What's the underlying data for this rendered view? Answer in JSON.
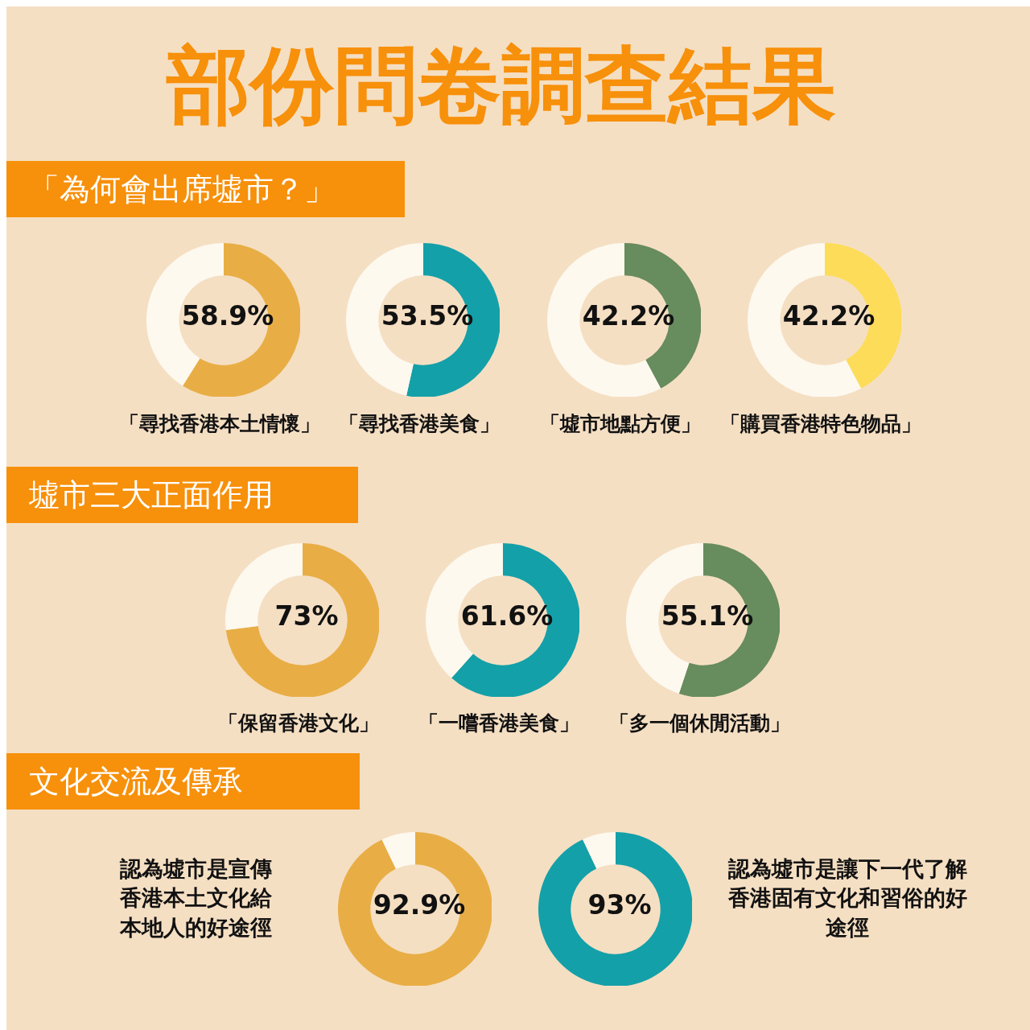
{
  "chart_data": [
    {
      "type": "other",
      "title": "部份問卷調查結果"
    },
    {
      "type": "donut",
      "subtitle": "「為何會出席墟市？」",
      "title": "「尋找香港本土情懷」",
      "categories": [
        null,
        null
      ],
      "values": [
        58.9,
        41.1
      ],
      "colors": [
        "#e8ae45",
        "#fdf9ef"
      ],
      "value_labels": [
        "58.9%",
        null
      ]
    },
    {
      "type": "donut",
      "title": "「尋找香港美食」",
      "categories": [
        null,
        null
      ],
      "values": [
        53.5,
        46.5
      ],
      "colors": [
        "#14a0a8",
        "#fdf9ef"
      ],
      "value_labels": [
        "53.5%",
        null
      ]
    },
    {
      "type": "donut",
      "title": "「墟市地點方便」",
      "categories": [
        null,
        null
      ],
      "values": [
        42.2,
        57.8
      ],
      "colors": [
        "#678c5e",
        "#fdf9ef"
      ],
      "value_labels": [
        "42.2%",
        null
      ]
    },
    {
      "type": "donut",
      "title": "「購買香港特色物品」",
      "categories": [
        null,
        null
      ],
      "values": [
        42.2,
        57.8
      ],
      "colors": [
        "#fddc59",
        "#fdf9ef"
      ],
      "value_labels": [
        "42.2%",
        null
      ]
    },
    {
      "type": "donut",
      "subtitle": "墟市三大正面作用",
      "title": "「保留香港文化」",
      "categories": [
        null,
        null
      ],
      "values": [
        73,
        27
      ],
      "colors": [
        "#e8ae45",
        "#fdf9ef"
      ],
      "value_labels": [
        "73%",
        null
      ]
    },
    {
      "type": "donut",
      "title": "「一嚐香港美食」",
      "categories": [
        null,
        null
      ],
      "values": [
        61.6,
        38.4
      ],
      "colors": [
        "#14a0a8",
        "#fdf9ef"
      ],
      "value_labels": [
        "61.6%",
        null
      ]
    },
    {
      "type": "donut",
      "title": "「多一個休閒活動」",
      "categories": [
        null,
        null
      ],
      "values": [
        55.1,
        44.9
      ],
      "colors": [
        "#678c5e",
        "#fdf9ef"
      ],
      "value_labels": [
        "55.1%",
        null
      ]
    },
    {
      "type": "donut",
      "subtitle": "文化交流及傳承",
      "title": "認為墟市是宣傳香港本土文化給本地人的好途徑",
      "categories": [
        null,
        null
      ],
      "values": [
        92.9,
        7.1
      ],
      "colors": [
        "#e8ae45",
        "#fdf9ef"
      ],
      "value_labels": [
        "92.9%",
        null
      ]
    },
    {
      "type": "donut",
      "title": "認為墟市是讓下一代了解香港固有文化和習俗的好途徑",
      "categories": [
        null,
        null
      ],
      "values": [
        93,
        7
      ],
      "colors": [
        "#14a0a8",
        "#fdf9ef"
      ],
      "value_labels": [
        "93%",
        null
      ]
    }
  ]
}
